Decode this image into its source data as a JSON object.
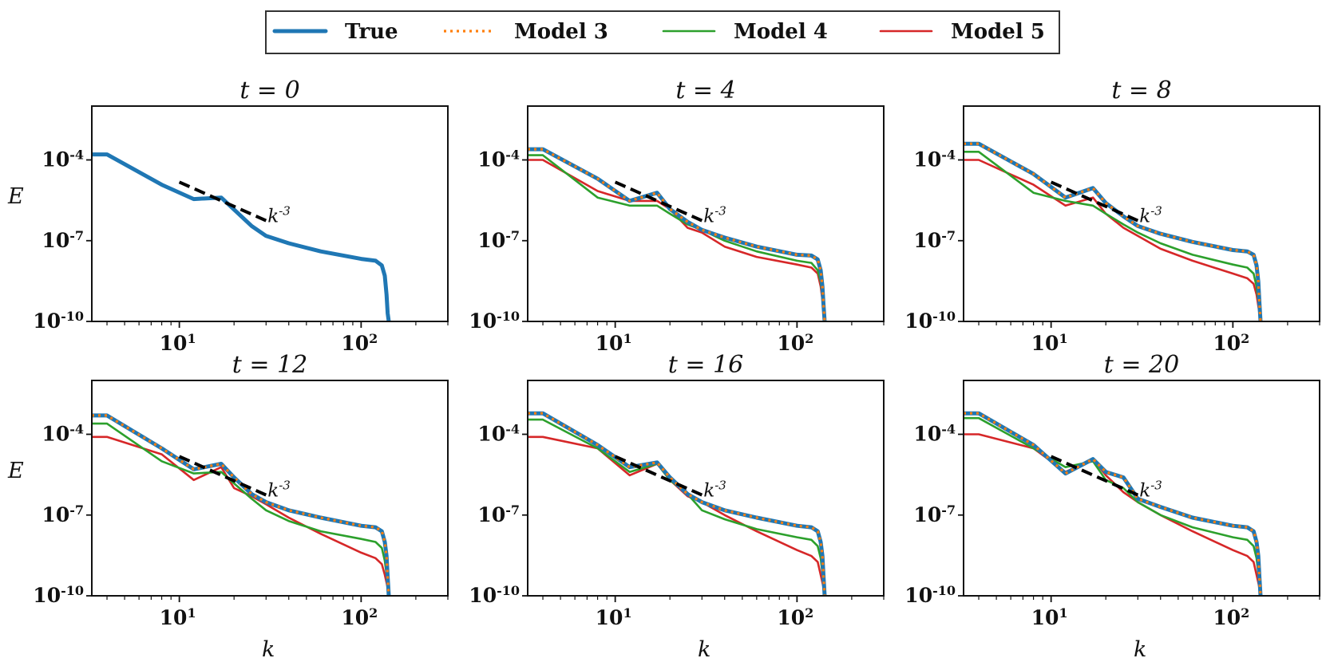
{
  "chart_data": {
    "type": "line",
    "xscale": "log",
    "yscale": "log",
    "xlim": [
      3.3,
      300
    ],
    "ylim": [
      1e-10,
      0.01
    ],
    "xticks": [
      {
        "value": 10,
        "label": "10^1"
      },
      {
        "value": 100,
        "label": "10^2"
      }
    ],
    "yticks": [
      {
        "value": 0.0001,
        "label": "10^-4"
      },
      {
        "value": 1e-07,
        "label": "10^-7"
      },
      {
        "value": 1e-10,
        "label": "10^-10"
      }
    ],
    "xlabel": "k",
    "ylabel": "E",
    "legend": {
      "placement": "top-center",
      "entries": [
        {
          "label": "True",
          "color": "#1f77b4",
          "style": "solid-thick"
        },
        {
          "label": "Model 3",
          "color": "#ff7f0e",
          "style": "dotted"
        },
        {
          "label": "Model 4",
          "color": "#2ca02c",
          "style": "solid"
        },
        {
          "label": "Model 5",
          "color": "#d62728",
          "style": "solid"
        }
      ]
    },
    "reference_line": {
      "label": "k^-3",
      "slope": -3,
      "x": [
        10,
        30
      ],
      "color": "#000000",
      "style": "dashed"
    },
    "panels": [
      {
        "title": "t = 0",
        "reference_y_start": 1.5e-05,
        "series": [
          {
            "name": "True",
            "x": [
              3.3,
              4,
              8,
              12,
              17,
              25,
              30,
              40,
              60,
              100,
              120,
              130,
              135,
              138,
              140,
              142
            ],
            "y": [
              0.00016,
              0.00016,
              1.2e-05,
              3.5e-06,
              4e-06,
              3.5e-07,
              1.5e-07,
              8e-08,
              4e-08,
              2.1e-08,
              1.8e-08,
              1.2e-08,
              5e-09,
              1e-09,
              2e-10,
              1e-10
            ]
          }
        ]
      },
      {
        "title": "t = 4",
        "reference_y_start": 1.5e-05,
        "series": [
          {
            "name": "True",
            "x": [
              3.3,
              4,
              8,
              12,
              17,
              20,
              25,
              30,
              40,
              60,
              100,
              120,
              130,
              135,
              138,
              140,
              142
            ],
            "y": [
              0.00025,
              0.00025,
              2e-05,
              3e-06,
              6e-06,
              1.5e-06,
              5e-07,
              2.5e-07,
              1.3e-07,
              6e-08,
              3e-08,
              2.8e-08,
              2e-08,
              8e-09,
              2e-09,
              4e-10,
              1e-10
            ]
          },
          {
            "name": "Model 3",
            "x": [
              3.3,
              4,
              8,
              12,
              17,
              20,
              25,
              30,
              40,
              60,
              100,
              120,
              130,
              135,
              138,
              140,
              142
            ],
            "y": [
              0.00025,
              0.00025,
              2e-05,
              3e-06,
              6e-06,
              1.5e-06,
              5e-07,
              2.5e-07,
              1.3e-07,
              6e-08,
              3e-08,
              2.8e-08,
              2e-08,
              8e-09,
              2e-09,
              4e-10,
              1e-10
            ]
          },
          {
            "name": "Model 4",
            "x": [
              3.3,
              4,
              8,
              12,
              17,
              20,
              25,
              30,
              40,
              60,
              100,
              120,
              130,
              135,
              140,
              142
            ],
            "y": [
              0.00015,
              0.00015,
              4e-06,
              2e-06,
              2e-06,
              1e-06,
              4e-07,
              2.5e-07,
              1e-07,
              4e-08,
              1.8e-08,
              1.5e-08,
              8e-09,
              3e-09,
              4e-10,
              1e-10
            ]
          },
          {
            "name": "Model 5",
            "x": [
              3.3,
              4,
              8,
              12,
              17,
              20,
              25,
              30,
              40,
              60,
              100,
              120,
              130,
              135,
              140,
              142
            ],
            "y": [
              0.0001,
              0.0001,
              7e-06,
              3e-06,
              3e-06,
              1.5e-06,
              3e-07,
              2e-07,
              6e-08,
              2.5e-08,
              1.3e-08,
              1e-08,
              6e-09,
              2e-09,
              3e-10,
              1e-10
            ]
          }
        ]
      },
      {
        "title": "t = 8",
        "reference_y_start": 1.5e-05,
        "series": [
          {
            "name": "True",
            "x": [
              3.3,
              4,
              8,
              12,
              17,
              20,
              25,
              30,
              40,
              60,
              100,
              120,
              130,
              135,
              138,
              140,
              142
            ],
            "y": [
              0.0004,
              0.0004,
              3e-05,
              4e-06,
              9e-06,
              2.5e-06,
              8e-07,
              3.5e-07,
              1.8e-07,
              9e-08,
              4.5e-08,
              4e-08,
              3e-08,
              1.2e-08,
              3e-09,
              5e-10,
              1e-10
            ]
          },
          {
            "name": "Model 3",
            "x": [
              3.3,
              4,
              8,
              12,
              17,
              20,
              25,
              30,
              40,
              60,
              100,
              120,
              130,
              135,
              138,
              140,
              142
            ],
            "y": [
              0.0004,
              0.0004,
              3e-05,
              4e-06,
              9e-06,
              2.5e-06,
              8e-07,
              3.5e-07,
              1.8e-07,
              9e-08,
              4.5e-08,
              4e-08,
              3e-08,
              1.2e-08,
              3e-09,
              5e-10,
              1e-10
            ]
          },
          {
            "name": "Model 4",
            "x": [
              3.3,
              4,
              8,
              12,
              17,
              20,
              25,
              30,
              40,
              60,
              100,
              120,
              130,
              135,
              140,
              142
            ],
            "y": [
              0.0002,
              0.0002,
              6e-06,
              3e-06,
              2e-06,
              1e-06,
              4e-07,
              2e-07,
              8e-08,
              3e-08,
              1.3e-08,
              1e-08,
              6e-09,
              2e-09,
              3e-10,
              1e-10
            ]
          },
          {
            "name": "Model 5",
            "x": [
              3.3,
              4,
              8,
              12,
              17,
              20,
              25,
              30,
              40,
              60,
              100,
              120,
              130,
              135,
              140,
              142
            ],
            "y": [
              0.0001,
              0.0001,
              1.2e-05,
              2e-06,
              4e-06,
              1e-06,
              3e-07,
              1.5e-07,
              5e-08,
              1.8e-08,
              6e-09,
              4e-09,
              2.5e-09,
              1e-09,
              2e-10,
              1e-10
            ]
          }
        ]
      },
      {
        "title": "t = 12",
        "reference_y_start": 1.5e-05,
        "series": [
          {
            "name": "True",
            "x": [
              3.3,
              4,
              8,
              12,
              17,
              20,
              25,
              30,
              40,
              60,
              100,
              120,
              130,
              135,
              138,
              140,
              142
            ],
            "y": [
              0.0005,
              0.0005,
              3e-05,
              5e-06,
              8e-06,
              2.5e-06,
              6e-07,
              3e-07,
              1.5e-07,
              8e-08,
              4e-08,
              3.5e-08,
              2.5e-08,
              1e-08,
              3e-09,
              5e-10,
              1e-10
            ]
          },
          {
            "name": "Model 3",
            "x": [
              3.3,
              4,
              8,
              12,
              17,
              20,
              25,
              30,
              40,
              60,
              100,
              120,
              130,
              135,
              138,
              140,
              142
            ],
            "y": [
              0.0005,
              0.0005,
              3e-05,
              5e-06,
              8e-06,
              2.5e-06,
              6e-07,
              3e-07,
              1.5e-07,
              8e-08,
              4e-08,
              3.5e-08,
              2.5e-08,
              1e-08,
              3e-09,
              5e-10,
              1e-10
            ]
          },
          {
            "name": "Model 4",
            "x": [
              3.3,
              4,
              8,
              12,
              17,
              20,
              25,
              30,
              40,
              60,
              100,
              120,
              130,
              135,
              140,
              142
            ],
            "y": [
              0.00025,
              0.00025,
              1e-05,
              3.5e-06,
              4e-06,
              1.5e-06,
              4e-07,
              1.5e-07,
              6e-08,
              2.5e-08,
              1.3e-08,
              1e-08,
              6e-09,
              2e-09,
              3e-10,
              1e-10
            ]
          },
          {
            "name": "Model 5",
            "x": [
              3.3,
              4,
              8,
              12,
              17,
              20,
              25,
              30,
              40,
              60,
              100,
              120,
              130,
              135,
              140,
              142
            ],
            "y": [
              8e-05,
              8e-05,
              1.8e-05,
              2e-06,
              6e-06,
              1e-06,
              5e-07,
              2.5e-07,
              8e-08,
              2e-08,
              4e-09,
              2.5e-09,
              1.5e-09,
              6e-10,
              2e-10,
              1e-10
            ]
          }
        ]
      },
      {
        "title": "t = 16",
        "reference_y_start": 1.5e-05,
        "series": [
          {
            "name": "True",
            "x": [
              3.3,
              4,
              8,
              12,
              17,
              20,
              25,
              30,
              40,
              60,
              100,
              120,
              130,
              135,
              138,
              140,
              142
            ],
            "y": [
              0.0006,
              0.0006,
              4e-05,
              6e-06,
              9e-06,
              2.5e-06,
              6e-07,
              3e-07,
              1.5e-07,
              8e-08,
              4e-08,
              3.5e-08,
              2.5e-08,
              1e-08,
              3e-09,
              5e-10,
              1e-10
            ]
          },
          {
            "name": "Model 3",
            "x": [
              3.3,
              4,
              8,
              12,
              17,
              20,
              25,
              30,
              40,
              60,
              100,
              120,
              130,
              135,
              138,
              140,
              142
            ],
            "y": [
              0.0006,
              0.0006,
              4e-05,
              6e-06,
              9e-06,
              2.5e-06,
              6e-07,
              3e-07,
              1.5e-07,
              8e-08,
              4e-08,
              3.5e-08,
              2.5e-08,
              1e-08,
              3e-09,
              5e-10,
              1e-10
            ]
          },
          {
            "name": "Model 4",
            "x": [
              3.3,
              4,
              8,
              12,
              17,
              20,
              25,
              30,
              40,
              60,
              100,
              120,
              130,
              135,
              140,
              142
            ],
            "y": [
              0.00035,
              0.00035,
              3e-05,
              4e-06,
              8e-06,
              2e-06,
              6e-07,
              1.5e-07,
              7e-08,
              3e-08,
              1.5e-08,
              1.2e-08,
              7e-09,
              2.5e-09,
              3e-10,
              1e-10
            ]
          },
          {
            "name": "Model 5",
            "x": [
              3.3,
              4,
              8,
              12,
              17,
              20,
              25,
              30,
              40,
              60,
              100,
              120,
              130,
              135,
              140,
              142
            ],
            "y": [
              8e-05,
              8e-05,
              3e-05,
              3e-06,
              8e-06,
              2e-06,
              5e-07,
              3e-07,
              1e-07,
              2.5e-08,
              5e-09,
              3e-09,
              1.8e-09,
              6e-10,
              2e-10,
              1e-10
            ]
          }
        ]
      },
      {
        "title": "t = 20",
        "reference_y_start": 1.5e-05,
        "series": [
          {
            "name": "True",
            "x": [
              3.3,
              4,
              8,
              12,
              17,
              20,
              25,
              30,
              40,
              60,
              100,
              120,
              130,
              135,
              138,
              140,
              142
            ],
            "y": [
              0.0006,
              0.0006,
              4e-05,
              3.5e-06,
              1.2e-05,
              4e-06,
              2.5e-06,
              4e-07,
              2e-07,
              8e-08,
              4e-08,
              3.5e-08,
              2.5e-08,
              1e-08,
              3e-09,
              5e-10,
              1e-10
            ]
          },
          {
            "name": "Model 3",
            "x": [
              3.3,
              4,
              8,
              12,
              17,
              20,
              25,
              30,
              40,
              60,
              100,
              120,
              130,
              135,
              138,
              140,
              142
            ],
            "y": [
              0.0006,
              0.0006,
              4e-05,
              3.5e-06,
              1.2e-05,
              4e-06,
              2.5e-06,
              4e-07,
              2e-07,
              8e-08,
              4e-08,
              3.5e-08,
              2.5e-08,
              1e-08,
              3e-09,
              5e-10,
              1e-10
            ]
          },
          {
            "name": "Model 4",
            "x": [
              3.3,
              4,
              8,
              12,
              17,
              20,
              25,
              30,
              40,
              60,
              100,
              120,
              130,
              135,
              140,
              142
            ],
            "y": [
              0.0004,
              0.0004,
              3e-05,
              6e-06,
              1e-05,
              2e-06,
              1e-06,
              3e-07,
              1e-07,
              3.5e-08,
              1.5e-08,
              1.2e-08,
              7e-09,
              2.5e-09,
              3e-10,
              1e-10
            ]
          },
          {
            "name": "Model 5",
            "x": [
              3.3,
              4,
              8,
              12,
              17,
              20,
              25,
              30,
              40,
              60,
              100,
              120,
              130,
              135,
              140,
              142
            ],
            "y": [
              0.0001,
              0.0001,
              3e-05,
              4e-06,
              1.2e-05,
              3e-06,
              7e-07,
              3e-07,
              1e-07,
              2.5e-08,
              5e-09,
              3e-09,
              1.8e-09,
              6e-10,
              2e-10,
              1e-10
            ]
          }
        ]
      }
    ]
  }
}
